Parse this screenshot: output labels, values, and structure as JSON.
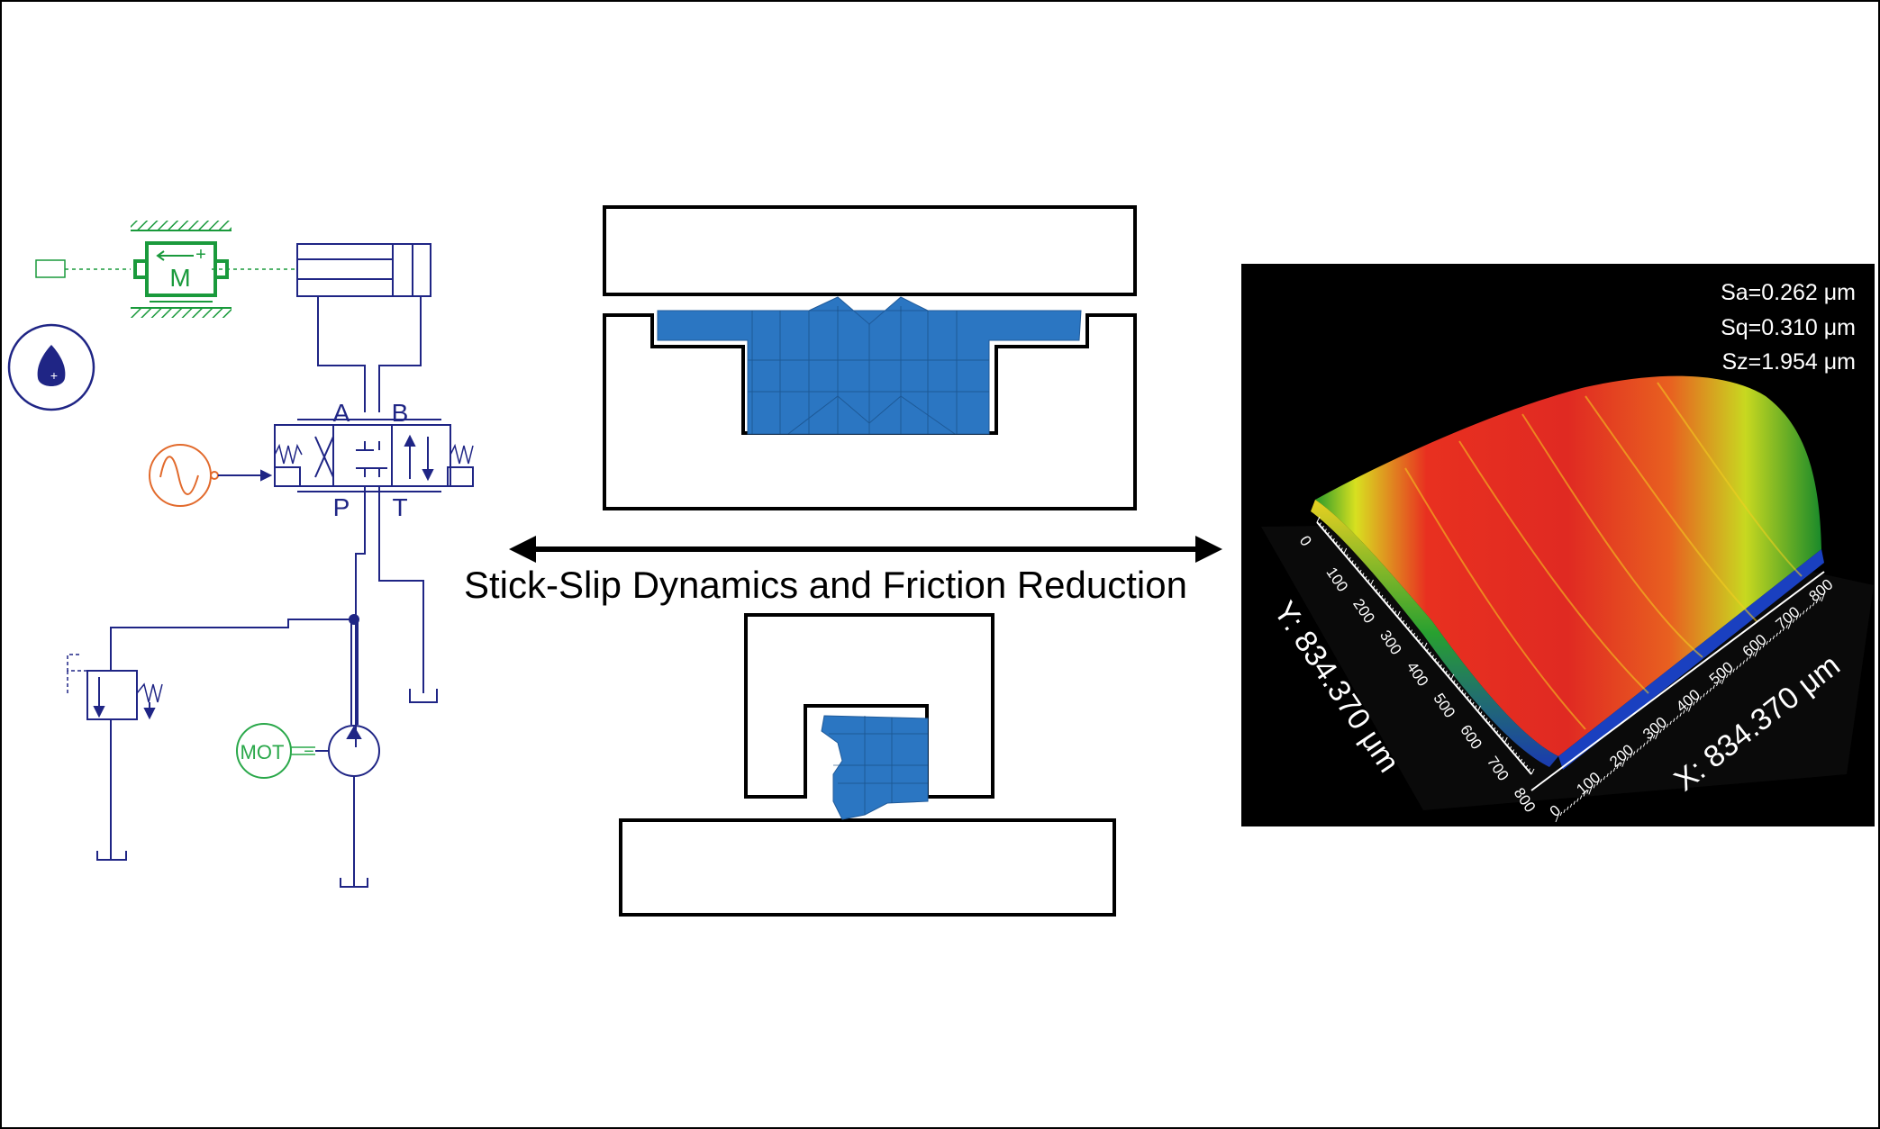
{
  "colors": {
    "hydraulic_line": "#1f2585",
    "mass_green": "#1a9a3c",
    "motor_green": "#2aa84a",
    "signal_orange": "#e26a2c",
    "seal_blue": "#2b76c2",
    "frame_black": "#000000"
  },
  "icons": {
    "mass": "mass-icon",
    "oil_drop": "oil-drop-icon",
    "signal": "sine-signal-icon",
    "motor": "motor-icon",
    "pump": "pump-icon",
    "relief_valve": "relief-valve-icon",
    "tank": "tank-icon",
    "arrow": "double-arrow-icon"
  },
  "hydraulic": {
    "mass_label": "M",
    "mass_sign_plus": "+",
    "drop_sign": "+",
    "port_a": "A",
    "port_b": "B",
    "port_p": "P",
    "port_t": "T",
    "motor_label": "MOT",
    "motor_sign": "−"
  },
  "center": {
    "caption": "Stick-Slip Dynamics and Friction Reduction"
  },
  "surface": {
    "sa": "Sa=0.262 μm",
    "sq": "Sq=0.310 μm",
    "sz": "Sz=1.954 μm",
    "y_axis_label": "Y: 834.370 μm",
    "x_axis_label": "X: 834.370 μm",
    "y_ticks": [
      "0",
      "100",
      "200",
      "300",
      "400",
      "500",
      "600",
      "700",
      "800"
    ],
    "x_ticks": [
      "0",
      "100",
      "200",
      "300",
      "400",
      "500",
      "600",
      "700",
      "800"
    ]
  }
}
